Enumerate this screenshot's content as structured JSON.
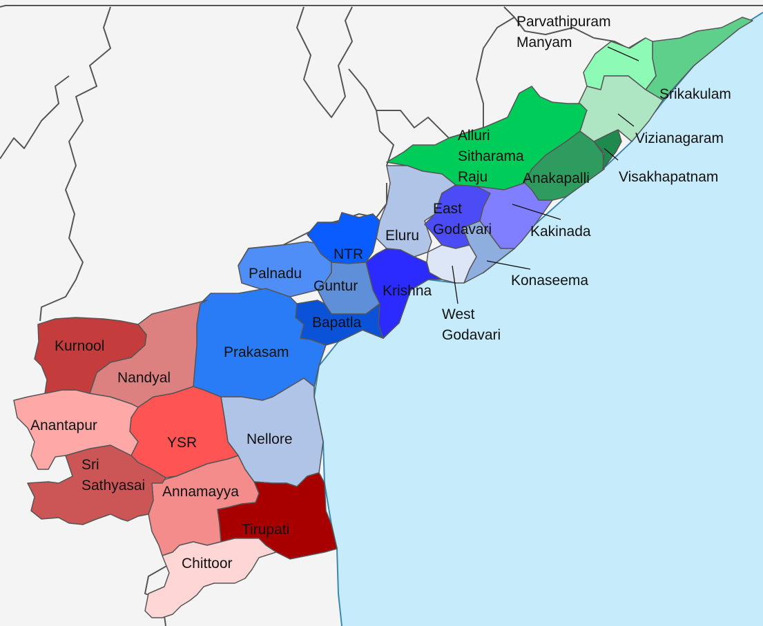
{
  "colors": {
    "sea": "#c6ebfb",
    "land_outside": "#f4f4f4",
    "border": "#555555",
    "coast": "#3a88b0"
  },
  "districts": [
    {
      "id": "parvathipuram-manyam",
      "lines": [
        "Parvathipuram",
        "Manyam"
      ],
      "color": "#8dfbb5"
    },
    {
      "id": "srikakulam",
      "lines": [
        "Srikakulam"
      ],
      "color": "#5fcf8c"
    },
    {
      "id": "vizianagaram",
      "lines": [
        "Vizianagaram"
      ],
      "color": "#aee6c3"
    },
    {
      "id": "visakhapatnam",
      "lines": [
        "Visakhapatnam"
      ],
      "color": "#1f8a4e"
    },
    {
      "id": "anakapalli",
      "lines": [
        "Anakapalli"
      ],
      "color": "#2e9c5e"
    },
    {
      "id": "alluri-sitharama-raju",
      "lines": [
        "Alluri",
        "Sitharama",
        "Raju"
      ],
      "color": "#00cc5a"
    },
    {
      "id": "kakinada",
      "lines": [
        "Kakinada"
      ],
      "color": "#7f7fff"
    },
    {
      "id": "east-godavari",
      "lines": [
        "East",
        "Godavari"
      ],
      "color": "#4c4cf6"
    },
    {
      "id": "konaseema",
      "lines": [
        "Konaseema"
      ],
      "color": "#8eaee0"
    },
    {
      "id": "west-godavari",
      "lines": [
        "West",
        "Godavari"
      ],
      "color": "#dde6f6"
    },
    {
      "id": "eluru",
      "lines": [
        "Eluru"
      ],
      "color": "#b0c4e8"
    },
    {
      "id": "krishna",
      "lines": [
        "Krishna"
      ],
      "color": "#2b2bff"
    },
    {
      "id": "ntr",
      "lines": [
        "NTR"
      ],
      "color": "#0a5cff"
    },
    {
      "id": "guntur",
      "lines": [
        "Guntur"
      ],
      "color": "#5e8fd8"
    },
    {
      "id": "palnadu",
      "lines": [
        "Palnadu"
      ],
      "color": "#4f8ef6"
    },
    {
      "id": "bapatla",
      "lines": [
        "Bapatla"
      ],
      "color": "#0a52d8"
    },
    {
      "id": "prakasam",
      "lines": [
        "Prakasam"
      ],
      "color": "#2a7cf6"
    },
    {
      "id": "nellore",
      "lines": [
        "Nellore"
      ],
      "color": "#b0c4e8"
    },
    {
      "id": "tirupati",
      "lines": [
        "Tirupati"
      ],
      "color": "#a80000"
    },
    {
      "id": "chittoor",
      "lines": [
        "Chittoor"
      ],
      "color": "#ffd6d6"
    },
    {
      "id": "annamayya",
      "lines": [
        "Annamayya"
      ],
      "color": "#f58c8c"
    },
    {
      "id": "ysr",
      "lines": [
        "YSR"
      ],
      "color": "#ff5454"
    },
    {
      "id": "sri-sathyasai",
      "lines": [
        "Sri",
        "Sathyasai"
      ],
      "color": "#cc5555"
    },
    {
      "id": "anantapur",
      "lines": [
        "Anantapur"
      ],
      "color": "#ffa8a8"
    },
    {
      "id": "nandyal",
      "lines": [
        "Nandyal"
      ],
      "color": "#dc8080"
    },
    {
      "id": "kurnool",
      "lines": [
        "Kurnool"
      ],
      "color": "#c43c3c"
    }
  ]
}
